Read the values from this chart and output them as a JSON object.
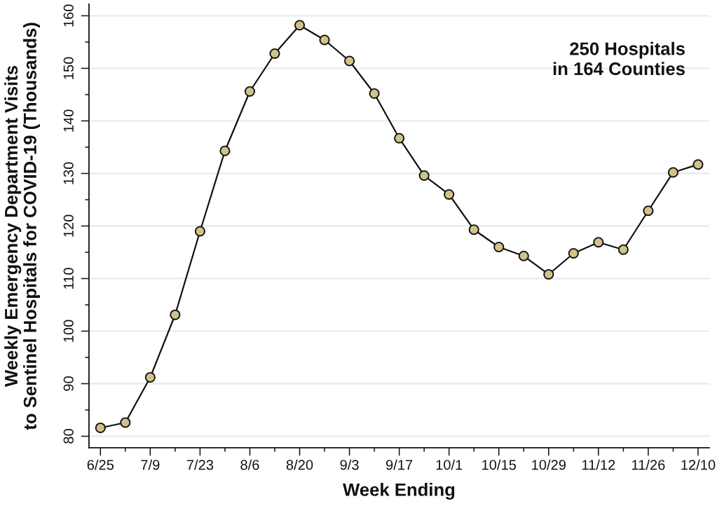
{
  "chart_data": {
    "type": "line",
    "xlabel": "Week Ending",
    "ylabel": "Weekly Emergency Department Visits\nto Sentinel Hospitals for COVID-19 (Thousands)",
    "annotations": [
      "250 Hospitals\nin 164 Counties"
    ],
    "categories": [
      "6/25",
      null,
      "7/9",
      null,
      "7/23",
      null,
      "8/6",
      null,
      "8/20",
      null,
      "9/3",
      null,
      "9/17",
      null,
      "10/1",
      null,
      "10/15",
      null,
      "10/29",
      null,
      "11/12",
      null,
      "11/26",
      null,
      "12/10"
    ],
    "series": [
      {
        "color": "#cfc38a",
        "values": [
          81.6,
          82.6,
          91.2,
          103.1,
          119.0,
          134.3,
          145.6,
          152.8,
          158.2,
          155.4,
          151.4,
          145.2,
          136.7,
          129.6,
          126.0,
          119.3,
          116.0,
          114.3,
          110.8,
          114.8,
          116.9,
          115.5,
          122.9,
          130.2,
          131.7
        ]
      }
    ],
    "ylim": [
      77.8,
      162.2
    ],
    "yticks": [
      80,
      {
        "value": 85,
        "label": null
      },
      90,
      {
        "value": 95,
        "label": null
      },
      100,
      {
        "value": 105,
        "label": null
      },
      110,
      {
        "value": 115,
        "label": null
      },
      120,
      {
        "value": 125,
        "label": null
      },
      130,
      {
        "value": 135,
        "label": null
      },
      140,
      {
        "value": 145,
        "label": null
      },
      150,
      {
        "value": 155,
        "label": null
      },
      160
    ],
    "grid": "y",
    "marker": "circle",
    "line_style": "solid"
  }
}
